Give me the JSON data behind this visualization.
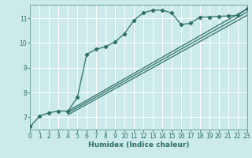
{
  "xlabel": "Humidex (Indice chaleur)",
  "bg_color": "#cceaea",
  "grid_color": "#ffffff",
  "line_color": "#2d7068",
  "xlim": [
    0,
    23
  ],
  "ylim": [
    6.5,
    11.55
  ],
  "xticks": [
    0,
    1,
    2,
    3,
    4,
    5,
    6,
    7,
    8,
    9,
    10,
    11,
    12,
    13,
    14,
    15,
    16,
    17,
    18,
    19,
    20,
    21,
    22,
    23
  ],
  "yticks": [
    7,
    8,
    9,
    10,
    11
  ],
  "curve1_x": [
    0,
    1,
    2,
    3,
    4,
    5,
    6,
    7,
    8,
    9,
    10,
    11,
    12,
    13,
    14,
    15,
    16,
    17,
    18,
    19,
    20,
    21,
    22,
    23
  ],
  "curve1_y": [
    6.62,
    7.05,
    7.18,
    7.25,
    7.25,
    7.8,
    9.55,
    9.75,
    9.85,
    10.05,
    10.38,
    10.92,
    11.22,
    11.33,
    11.33,
    11.22,
    10.75,
    10.8,
    11.05,
    11.05,
    11.08,
    11.1,
    11.12,
    11.38
  ],
  "line2_x": [
    4,
    23
  ],
  "line2_y": [
    7.25,
    11.38
  ],
  "line3_x": [
    4,
    23
  ],
  "line3_y": [
    7.18,
    11.25
  ],
  "line4_x": [
    4,
    23
  ],
  "line4_y": [
    7.1,
    11.12
  ]
}
